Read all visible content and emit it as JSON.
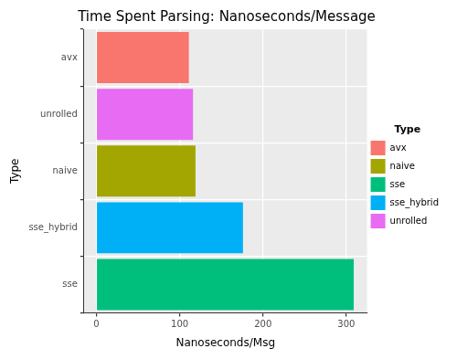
{
  "chart_data": {
    "type": "bar",
    "title": "Time Spent Parsing: Nanoseconds/Message",
    "x_label": "Nanoseconds/Msg",
    "y_label": "Type",
    "legend_title": "Type",
    "orientation": "horizontal",
    "grid": true,
    "legend": "right",
    "categories": [
      "avx",
      "unrolled",
      "naive",
      "sse_hybrid",
      "sse"
    ],
    "series": [
      {
        "name": "avx",
        "color": "#F8766D",
        "values": [
          111,
          null,
          null,
          null,
          null
        ]
      },
      {
        "name": "naive",
        "color": "#A3A500",
        "values": [
          null,
          null,
          119,
          null,
          null
        ]
      },
      {
        "name": "sse",
        "color": "#00BF7D",
        "values": [
          null,
          null,
          null,
          null,
          309
        ]
      },
      {
        "name": "sse_hybrid",
        "color": "#00B0F6",
        "values": [
          null,
          null,
          null,
          176,
          null
        ]
      },
      {
        "name": "unrolled",
        "color": "#E76BF3",
        "values": [
          null,
          116,
          null,
          null,
          null
        ]
      }
    ],
    "xlim": [
      -15,
      325
    ],
    "xticks": [
      0,
      100,
      200,
      300
    ]
  }
}
